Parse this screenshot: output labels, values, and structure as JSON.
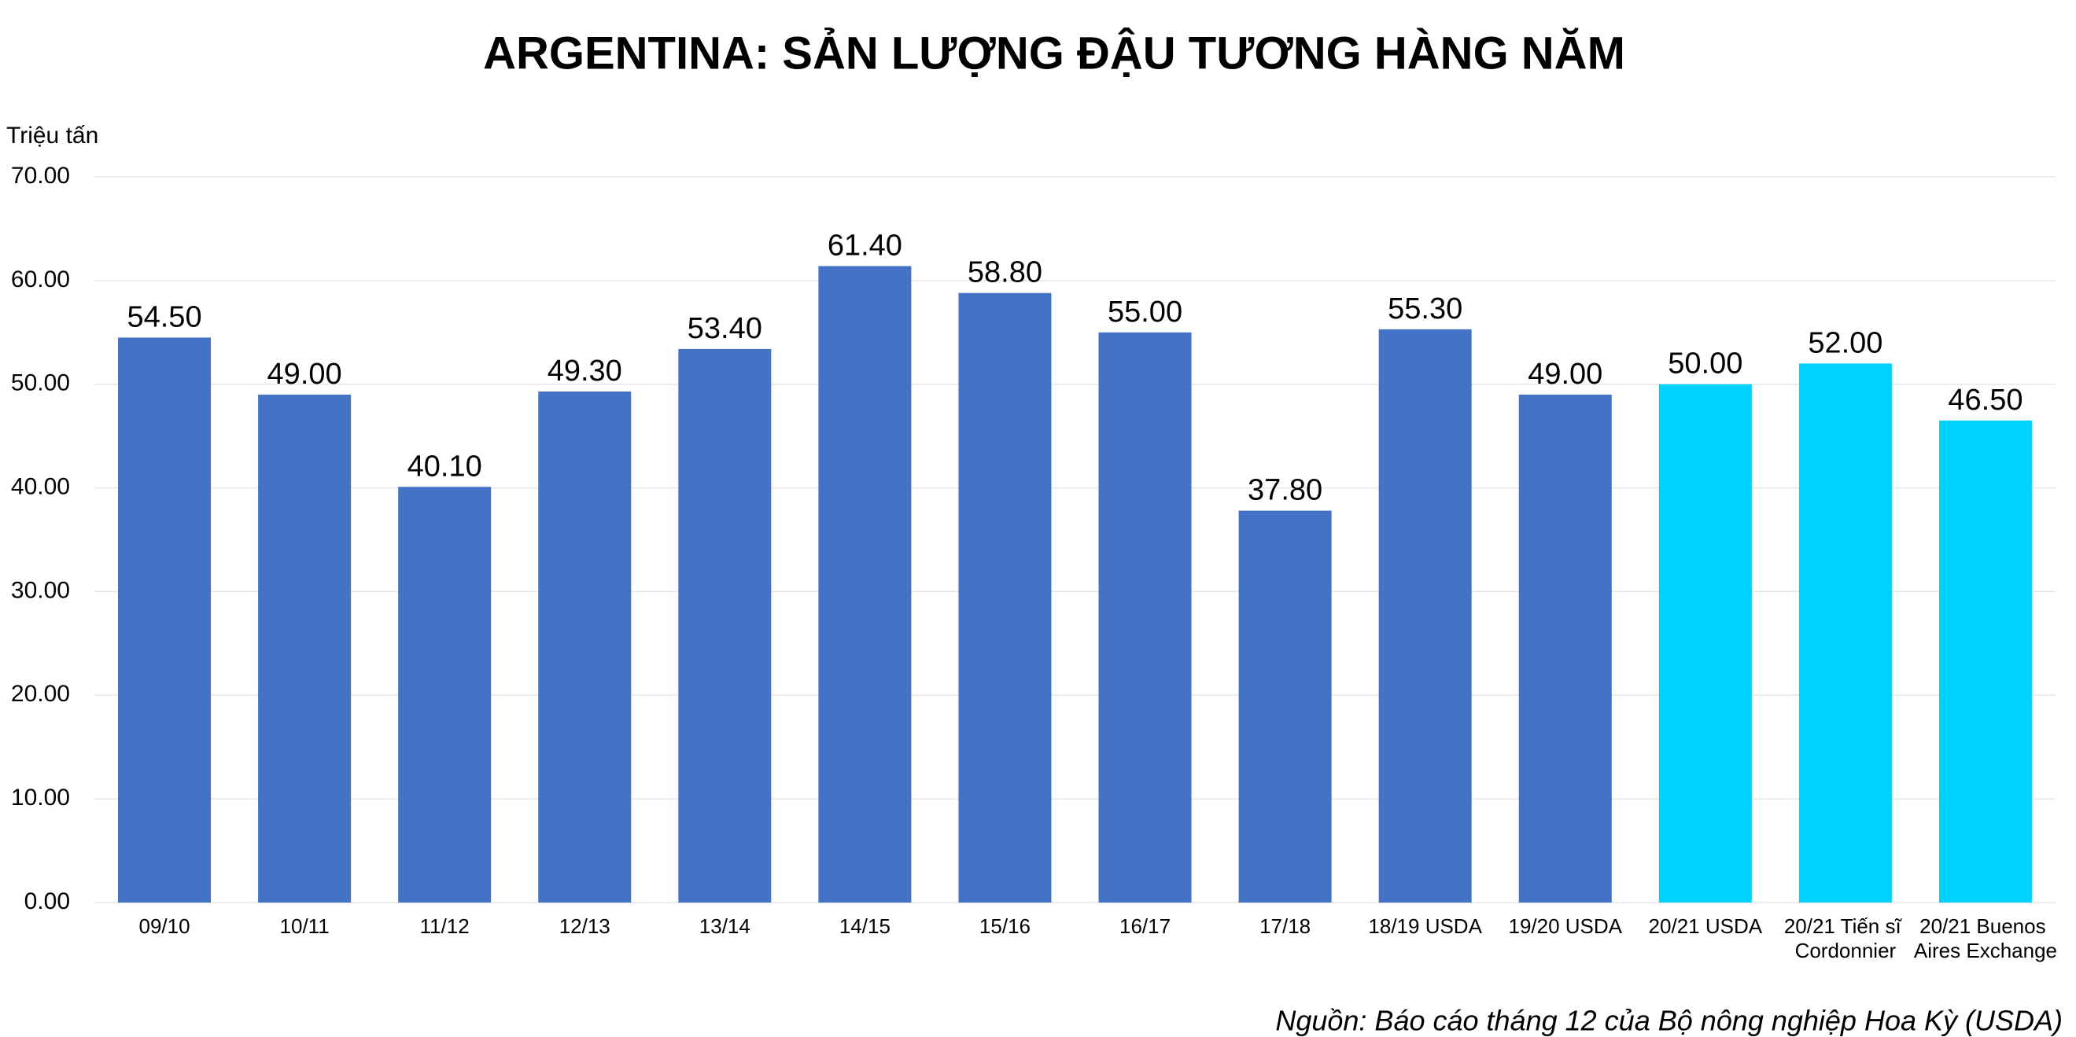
{
  "chart_data": {
    "type": "bar",
    "title": "ARGENTINA: SẢN LƯỢNG ĐẬU TƯƠNG HÀNG NĂM",
    "y_label": "Triệu tấn",
    "source": "Nguồn: Báo cáo tháng 12 của Bộ nông nghiệp Hoa Kỳ (USDA)",
    "categories": [
      "09/10",
      "10/11",
      "11/12",
      "12/13",
      "13/14",
      "14/15",
      "15/16",
      "16/17",
      "17/18",
      "18/19 USDA",
      "19/20 USDA",
      "20/21 USDA",
      "20/21 Tiến sĩ Cordonnier",
      "20/21 Buenos Aires Exchange"
    ],
    "values": [
      54.5,
      49,
      40.1,
      49.3,
      53.4,
      61.4,
      58.8,
      55,
      37.8,
      55.3,
      49,
      50,
      52,
      46.5
    ],
    "value_labels": [
      "54.50",
      "49.00",
      "40.10",
      "49.30",
      "53.40",
      "61.40",
      "58.80",
      "55.00",
      "37.80",
      "55.30",
      "49.00",
      "50.00",
      "52.00",
      "46.50"
    ],
    "colors": [
      "#4472c4",
      "#4472c4",
      "#4472c4",
      "#4472c4",
      "#4472c4",
      "#4472c4",
      "#4472c4",
      "#4472c4",
      "#4472c4",
      "#4472c4",
      "#4472c4",
      "#00d2ff",
      "#00d2ff",
      "#00d2ff"
    ],
    "ylim": [
      0,
      70
    ],
    "yticks": [
      {
        "value": 0,
        "label": "0.00"
      },
      {
        "value": 10,
        "label": "10.00"
      },
      {
        "value": 20,
        "label": "20.00"
      },
      {
        "value": 30,
        "label": "30.00"
      },
      {
        "value": 40,
        "label": "40.00"
      },
      {
        "value": 50,
        "label": "50.00"
      },
      {
        "value": 60,
        "label": "60.00"
      },
      {
        "value": 70,
        "label": "70.00"
      }
    ],
    "grid": true
  }
}
